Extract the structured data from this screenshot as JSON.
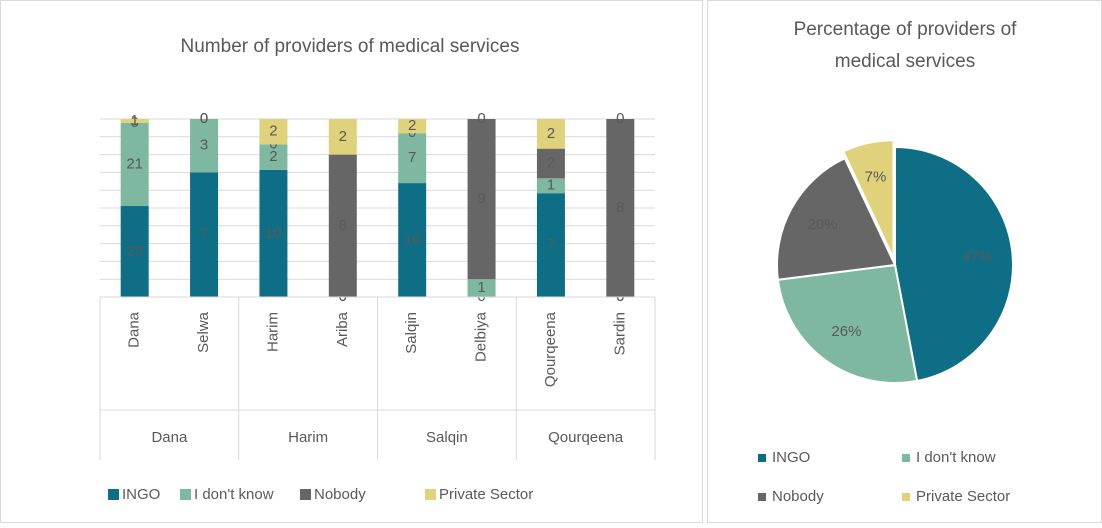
{
  "chart_data": [
    {
      "type": "bar",
      "stacking": "percent",
      "title": "Number of providers of medical services",
      "categories": [
        "Dana",
        "Selwa",
        "Harim",
        "Ariba",
        "Salqin",
        "Delbiya",
        "Qourqeena",
        "Sardin"
      ],
      "groups": [
        "Dana",
        "Harim",
        "Salqin",
        "Qourqeena"
      ],
      "series": [
        {
          "name": "INGO",
          "color": "#0e6e85",
          "values": [
            23,
            7,
            10,
            0,
            16,
            0,
            7,
            0
          ]
        },
        {
          "name": "I don't know",
          "color": "#7fb8a0",
          "values": [
            21,
            3,
            2,
            0,
            7,
            1,
            1,
            0
          ]
        },
        {
          "name": "Nobody",
          "color": "#666666",
          "values": [
            0,
            0,
            0,
            8,
            0,
            9,
            2,
            8
          ]
        },
        {
          "name": "Private Sector",
          "color": "#dfd27a",
          "values": [
            1,
            0,
            2,
            2,
            2,
            0,
            2,
            0
          ]
        }
      ],
      "ylim": [
        0,
        100
      ],
      "yticks": [
        0,
        10,
        20,
        30,
        40,
        50,
        60,
        70,
        80,
        90,
        100
      ],
      "grid": true
    },
    {
      "type": "pie",
      "title": "Percentage of providers of medical services",
      "categories": [
        "INGO",
        "I don't know",
        "Nobody",
        "Private Sector"
      ],
      "values": [
        47,
        26,
        20,
        7
      ],
      "value_labels": [
        "47%",
        "26%",
        "20%",
        "7%"
      ],
      "colors": [
        "#0e6e85",
        "#7fb8a0",
        "#666666",
        "#dfd27a"
      ]
    }
  ]
}
